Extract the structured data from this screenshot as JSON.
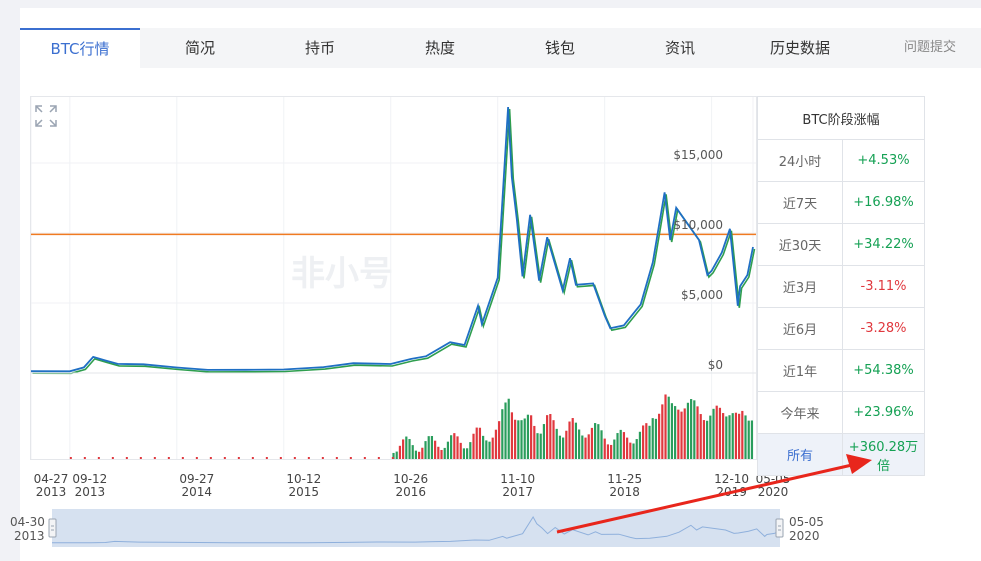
{
  "tabs": [
    {
      "label": "BTC行情",
      "active": true
    },
    {
      "label": "简况"
    },
    {
      "label": "持币"
    },
    {
      "label": "热度"
    },
    {
      "label": "钱包"
    },
    {
      "label": "资讯"
    },
    {
      "label": "历史数据"
    }
  ],
  "report_link": "问题提交",
  "watermark": "非小号",
  "stats": {
    "title": "BTC阶段涨幅",
    "rows": [
      {
        "label": "24小时",
        "value": "+4.53%",
        "trend": "up"
      },
      {
        "label": "近7天",
        "value": "+16.98%",
        "trend": "up"
      },
      {
        "label": "近30天",
        "value": "+34.22%",
        "trend": "up"
      },
      {
        "label": "近3月",
        "value": "-3.11%",
        "trend": "down"
      },
      {
        "label": "近6月",
        "value": "-3.28%",
        "trend": "down"
      },
      {
        "label": "近1年",
        "value": "+54.38%",
        "trend": "up"
      },
      {
        "label": "今年来",
        "value": "+23.96%",
        "trend": "up"
      },
      {
        "label": "所有",
        "value": "+360.28万倍",
        "trend": "up"
      }
    ]
  },
  "colors": {
    "accent": "#3b6fd0",
    "price_line": "#1f6fc4",
    "price_shadow": "#2e9e4e",
    "reference_line": "#f07a21",
    "volume_up": "#2a9d5c",
    "volume_down": "#e0383e",
    "navigator_fill": "#d6e1f0",
    "annotation_arrow": "#e8261c"
  },
  "chart_data": {
    "type": "line",
    "y_ticks": [
      "$0",
      "$5,000",
      "$10,000",
      "$15,000"
    ],
    "y_tick_values": [
      0,
      5000,
      10000,
      15000
    ],
    "ylim": [
      0,
      19000
    ],
    "reference_line": 9900,
    "x_ticks": [
      {
        "date": "04-27",
        "year": "2013"
      },
      {
        "date": "09-12",
        "year": "2013"
      },
      {
        "date": "09-27",
        "year": "2014"
      },
      {
        "date": "10-12",
        "year": "2015"
      },
      {
        "date": "10-26",
        "year": "2016"
      },
      {
        "date": "11-10",
        "year": "2017"
      },
      {
        "date": "11-25",
        "year": "2018"
      },
      {
        "date": "12-10",
        "year": "2019"
      },
      {
        "date": "05-05",
        "year": "2020"
      }
    ],
    "x_tick_dates": [
      "2013-04-27",
      "2013-09-12",
      "2014-09-27",
      "2015-10-12",
      "2016-10-26",
      "2017-11-10",
      "2018-11-25",
      "2019-12-10",
      "2020-05-05"
    ],
    "navigator_start": {
      "date": "04-30",
      "year": "2013"
    },
    "navigator_end": {
      "date": "05-05",
      "year": "2020"
    },
    "series": [
      {
        "x": [
          "2013-04-27",
          "2013-09-12",
          "2013-11-01",
          "2013-12-04",
          "2014-01-15",
          "2014-03-01",
          "2014-06-01",
          "2014-09-27",
          "2015-01-15",
          "2015-06-01",
          "2015-10-12",
          "2016-03-01",
          "2016-06-15",
          "2016-10-26",
          "2017-01-05",
          "2017-03-01",
          "2017-05-25",
          "2017-07-15",
          "2017-09-01",
          "2017-09-15",
          "2017-11-10",
          "2017-12-17",
          "2017-12-30",
          "2018-01-17",
          "2018-02-06",
          "2018-03-05",
          "2018-04-06",
          "2018-05-05",
          "2018-06-29",
          "2018-07-25",
          "2018-08-15",
          "2018-10-15",
          "2018-11-25",
          "2018-12-15",
          "2019-02-01",
          "2019-04-02",
          "2019-05-15",
          "2019-06-26",
          "2019-07-16",
          "2019-08-06",
          "2019-10-26",
          "2019-11-25",
          "2019-12-10",
          "2020-01-15",
          "2020-02-13",
          "2020-03-12",
          "2020-03-20",
          "2020-04-15",
          "2020-05-05"
        ],
        "values": [
          130,
          120,
          400,
          1150,
          900,
          650,
          620,
          390,
          220,
          230,
          250,
          420,
          700,
          640,
          1000,
          1200,
          2200,
          2000,
          4800,
          3500,
          6800,
          19000,
          14000,
          11000,
          6900,
          11300,
          6600,
          9700,
          5900,
          8200,
          6300,
          6400,
          4100,
          3200,
          3400,
          4900,
          7900,
          12900,
          9500,
          11800,
          9500,
          7000,
          7300,
          8600,
          10300,
          4800,
          6200,
          7000,
          9000
        ]
      }
    ]
  }
}
